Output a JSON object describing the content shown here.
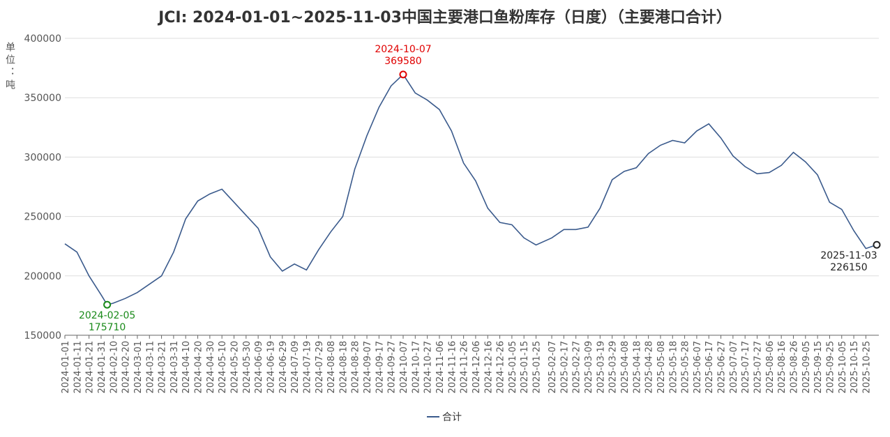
{
  "chart_data": {
    "type": "line",
    "title": "JCI: 2024-01-01~2025-11-03中国主要港口鱼粉库存（日度）（主要港口合计）",
    "y_label": "单位：吨",
    "x": [
      "2024-01-01",
      "2024-01-11",
      "2024-01-21",
      "2024-01-31",
      "2024-02-05",
      "2024-02-10",
      "2024-02-20",
      "2024-03-01",
      "2024-03-11",
      "2024-03-21",
      "2024-03-31",
      "2024-04-10",
      "2024-04-20",
      "2024-04-30",
      "2024-05-10",
      "2024-05-20",
      "2024-05-30",
      "2024-06-09",
      "2024-06-19",
      "2024-06-29",
      "2024-07-09",
      "2024-07-19",
      "2024-07-29",
      "2024-08-08",
      "2024-08-18",
      "2024-08-28",
      "2024-09-07",
      "2024-09-17",
      "2024-09-27",
      "2024-10-07",
      "2024-10-17",
      "2024-10-27",
      "2024-11-06",
      "2024-11-16",
      "2024-11-26",
      "2024-12-06",
      "2024-12-16",
      "2024-12-26",
      "2025-01-05",
      "2025-01-15",
      "2025-01-25",
      "2025-02-07",
      "2025-02-17",
      "2025-02-27",
      "2025-03-09",
      "2025-03-19",
      "2025-03-29",
      "2025-04-08",
      "2025-04-18",
      "2025-04-28",
      "2025-05-08",
      "2025-05-18",
      "2025-05-28",
      "2025-06-07",
      "2025-06-17",
      "2025-06-27",
      "2025-07-07",
      "2025-07-17",
      "2025-07-27",
      "2025-08-06",
      "2025-08-16",
      "2025-08-26",
      "2025-09-05",
      "2025-09-15",
      "2025-09-25",
      "2025-10-05",
      "2025-10-15",
      "2025-10-25",
      "2025-11-03"
    ],
    "series": [
      {
        "name": "合计",
        "color": "#3a5a8c",
        "values": [
          227000,
          220000,
          200000,
          184000,
          175710,
          177000,
          181000,
          186000,
          193000,
          200000,
          220000,
          248000,
          263000,
          269000,
          273000,
          262000,
          251000,
          240000,
          216000,
          204000,
          210000,
          205000,
          222000,
          237000,
          250000,
          290000,
          318000,
          342000,
          360000,
          369580,
          354000,
          348000,
          340000,
          322000,
          295000,
          280000,
          257000,
          245000,
          243000,
          232000,
          226000,
          232000,
          239000,
          239000,
          241000,
          257000,
          281000,
          288000,
          291000,
          303000,
          310000,
          314000,
          312000,
          322000,
          328000,
          316000,
          301000,
          292000,
          286000,
          287000,
          293000,
          304000,
          296000,
          285000,
          262000,
          256000,
          238000,
          223000,
          226150
        ]
      }
    ],
    "annotations": [
      {
        "index": 4,
        "color": "#1a8a1a",
        "position": "below"
      },
      {
        "index": 29,
        "color": "#e00000",
        "position": "above"
      },
      {
        "index": 68,
        "color": "#222222",
        "position": "below"
      }
    ],
    "ylim": [
      150000,
      400000
    ],
    "yticks": [
      150000,
      200000,
      250000,
      300000,
      350000,
      400000
    ],
    "xticks": [
      "2024-01-01",
      "2024-01-11",
      "2024-01-21",
      "2024-01-31",
      "2024-02-10",
      "2024-02-20",
      "2024-03-01",
      "2024-03-11",
      "2024-03-21",
      "2024-03-31",
      "2024-04-10",
      "2024-04-20",
      "2024-04-30",
      "2024-05-10",
      "2024-05-20",
      "2024-05-30",
      "2024-06-09",
      "2024-06-19",
      "2024-06-29",
      "2024-07-09",
      "2024-07-19",
      "2024-07-29",
      "2024-08-08",
      "2024-08-18",
      "2024-08-28",
      "2024-09-07",
      "2024-09-17",
      "2024-09-27",
      "2024-10-07",
      "2024-10-17",
      "2024-10-27",
      "2024-11-06",
      "2024-11-16",
      "2024-11-26",
      "2024-12-06",
      "2024-12-16",
      "2024-12-26",
      "2025-01-05",
      "2025-01-15",
      "2025-01-25",
      "2025-02-07",
      "2025-02-17",
      "2025-02-27",
      "2025-03-09",
      "2025-03-19",
      "2025-03-29",
      "2025-04-08",
      "2025-04-18",
      "2025-04-28",
      "2025-05-08",
      "2025-05-18",
      "2025-05-28",
      "2025-06-07",
      "2025-06-17",
      "2025-06-27",
      "2025-07-07",
      "2025-07-17",
      "2025-07-27",
      "2025-08-06",
      "2025-08-16",
      "2025-08-26",
      "2025-09-05",
      "2025-09-15",
      "2025-09-25",
      "2025-10-05",
      "2025-10-15",
      "2025-10-25"
    ],
    "grid": true
  }
}
